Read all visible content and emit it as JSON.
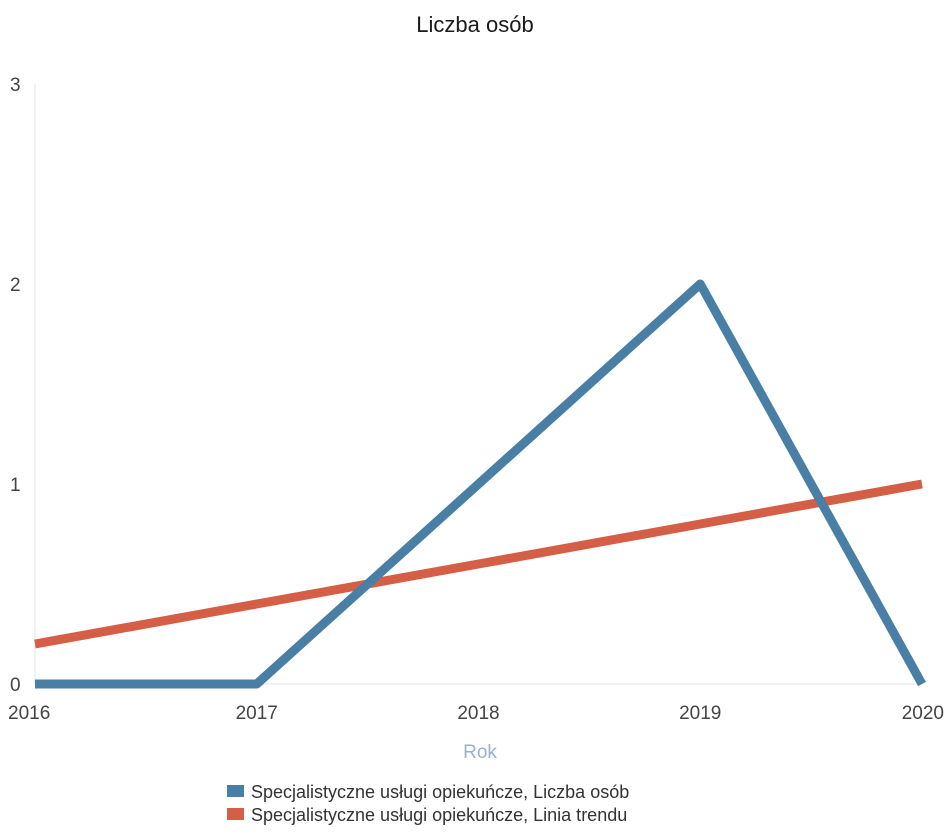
{
  "chart_data": {
    "type": "line",
    "title": "Liczba osób",
    "xlabel": "Rok",
    "ylabel": "",
    "x": [
      2016,
      2017,
      2018,
      2019,
      2020
    ],
    "ylim": [
      0,
      3
    ],
    "y_ticks": [
      0,
      1,
      2,
      3
    ],
    "grid": false,
    "legend_position": "bottom",
    "series": [
      {
        "name": "Specjalistyczne usługi opiekuńcze, Liczba osób",
        "color": "#4a7fa5",
        "values": [
          0,
          0,
          1,
          2,
          0
        ]
      },
      {
        "name": "Specjalistyczne usługi opiekuńcze, Linia trendu",
        "color": "#d45f46",
        "values": [
          0.2,
          0.4,
          0.6,
          0.8,
          1.0
        ]
      }
    ]
  }
}
